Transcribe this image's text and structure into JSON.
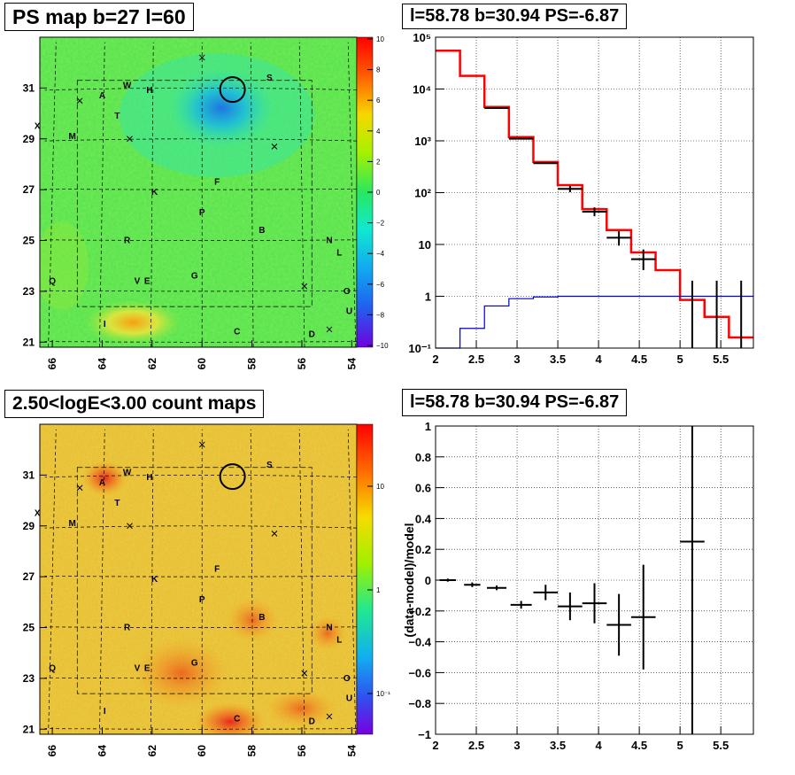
{
  "panels": {
    "ps_map": {
      "title": "PS map b=27 l=60"
    },
    "spectrum": {
      "title": "l=58.78 b=30.94 PS=-6.87"
    },
    "count_map": {
      "title": "2.50<logE<3.00 count maps"
    },
    "residual": {
      "title": "l=58.78 b=30.94 PS=-6.87"
    }
  },
  "maps": {
    "x_ticks": [
      "66",
      "64",
      "62",
      "60",
      "58",
      "56",
      "54"
    ],
    "y_ticks": [
      "31",
      "29",
      "27",
      "25",
      "23",
      "21"
    ],
    "source_labels": [
      {
        "t": "S",
        "l": 57.3,
        "b": 31.3
      },
      {
        "t": "W",
        "l": 63.0,
        "b": 31.0
      },
      {
        "t": "H",
        "l": 62.1,
        "b": 30.8
      },
      {
        "t": "A",
        "l": 64.0,
        "b": 30.6
      },
      {
        "t": "T",
        "l": 63.4,
        "b": 29.8
      },
      {
        "t": "X",
        "l": 66.6,
        "b": 29.4
      },
      {
        "t": "M",
        "l": 65.2,
        "b": 29.0
      },
      {
        "t": "F",
        "l": 59.4,
        "b": 27.2
      },
      {
        "t": "K",
        "l": 61.9,
        "b": 26.8
      },
      {
        "t": "P",
        "l": 60.0,
        "b": 26.0
      },
      {
        "t": "B",
        "l": 57.6,
        "b": 25.3
      },
      {
        "t": "R",
        "l": 63.0,
        "b": 24.9
      },
      {
        "t": "N",
        "l": 54.9,
        "b": 24.9
      },
      {
        "t": "L",
        "l": 54.5,
        "b": 24.4
      },
      {
        "t": "Q",
        "l": 66.0,
        "b": 23.3
      },
      {
        "t": "G",
        "l": 60.3,
        "b": 23.5
      },
      {
        "t": "V",
        "l": 62.6,
        "b": 23.3
      },
      {
        "t": "E",
        "l": 62.2,
        "b": 23.3
      },
      {
        "t": "O",
        "l": 54.2,
        "b": 22.9
      },
      {
        "t": "U",
        "l": 54.1,
        "b": 22.1
      },
      {
        "t": "I",
        "l": 63.9,
        "b": 21.6
      },
      {
        "t": "C",
        "l": 58.6,
        "b": 21.3
      },
      {
        "t": "D",
        "l": 55.6,
        "b": 21.2
      }
    ],
    "cross_markers": [
      {
        "l": 60.0,
        "b": 32.2
      },
      {
        "l": 64.9,
        "b": 30.5
      },
      {
        "l": 62.9,
        "b": 29.0
      },
      {
        "l": 57.1,
        "b": 28.7
      },
      {
        "l": 55.9,
        "b": 23.2
      },
      {
        "l": 54.9,
        "b": 21.5
      }
    ],
    "circle": {
      "l": 58.78,
      "b": 30.94
    }
  },
  "colorbars": {
    "ps": {
      "ticks": [
        "10",
        "8",
        "6",
        "4",
        "2",
        "0",
        "−2",
        "−4",
        "−6",
        "−8",
        "−10"
      ]
    },
    "count": {
      "ticks": [
        "10",
        "1",
        "10⁻¹"
      ]
    }
  },
  "chart_data": [
    {
      "type": "heatmap",
      "title": "PS map b=27 l=60",
      "xlabel": "",
      "ylabel": "",
      "xlim": [
        66.5,
        53.8
      ],
      "ylim": [
        20.8,
        33.0
      ],
      "colorbar_range": [
        -10,
        10
      ],
      "marked_source": {
        "l": 58.78,
        "b": 30.94,
        "PS": -6.87
      }
    },
    {
      "type": "line",
      "title": "l=58.78 b=30.94 PS=-6.87",
      "xlabel": "",
      "ylabel": "",
      "x_ticks": [
        "2",
        "2.5",
        "3",
        "3.5",
        "4",
        "4.5",
        "5",
        "5.5"
      ],
      "y_ticks": [
        "10⁻¹",
        "1",
        "10",
        "10²",
        "10³",
        "10⁴",
        "10⁵"
      ],
      "xlim": [
        2,
        5.9
      ],
      "ylim": [
        0.1,
        100000
      ],
      "log_y": true,
      "grid": true,
      "bin_edges": [
        2.0,
        2.3,
        2.6,
        2.9,
        3.2,
        3.5,
        3.8,
        4.1,
        4.4,
        4.7,
        5.0,
        5.3,
        5.6,
        5.9
      ],
      "series": [
        {
          "color": "#ff0000",
          "values": [
            55000,
            18000,
            4500,
            1180,
            390,
            140,
            48,
            19,
            7,
            3.2,
            0.85,
            0.4,
            0.16
          ]
        },
        {
          "color": "#0000cc",
          "values": [
            0.1,
            0.24,
            0.65,
            0.9,
            0.97,
            1,
            1,
            1,
            1,
            1,
            1,
            1,
            1
          ]
        },
        {
          "color": "#000000",
          "points": [
            {
              "x": 2.75,
              "y": 4300,
              "xerr": 0.15
            },
            {
              "x": 3.05,
              "y": 1100,
              "xerr": 0.15
            },
            {
              "x": 3.35,
              "y": 370,
              "xerr": 0.15
            },
            {
              "x": 3.65,
              "y": 118,
              "xerr": 0.15,
              "ylo": 102,
              "yhi": 135
            },
            {
              "x": 3.95,
              "y": 43,
              "xerr": 0.15,
              "ylo": 35,
              "yhi": 52
            },
            {
              "x": 4.25,
              "y": 13.5,
              "xerr": 0.15,
              "ylo": 9.5,
              "yhi": 18
            },
            {
              "x": 4.55,
              "y": 5.2,
              "xerr": 0.15,
              "ylo": 3.2,
              "yhi": 8
            },
            {
              "x": 5.15,
              "y": 0.1,
              "xerr": 0,
              "ylo": 0.1,
              "yhi": 2
            },
            {
              "x": 5.45,
              "y": 0.1,
              "xerr": 0,
              "ylo": 0.1,
              "yhi": 2
            },
            {
              "x": 5.75,
              "y": 0.1,
              "xerr": 0,
              "ylo": 0.1,
              "yhi": 2
            }
          ]
        }
      ]
    },
    {
      "type": "heatmap",
      "title": "2.50<logE<3.00 count maps",
      "xlabel": "",
      "ylabel": "",
      "xlim": [
        66.5,
        53.8
      ],
      "ylim": [
        20.8,
        33.0
      ],
      "colorbar": "log"
    },
    {
      "type": "scatter",
      "title": "l=58.78 b=30.94 PS=-6.87",
      "xlabel": "",
      "ylabel": "(data-model)/model",
      "x_ticks": [
        "2",
        "2.5",
        "3",
        "3.5",
        "4",
        "4.5",
        "5",
        "5.5"
      ],
      "y_ticks": [
        "1",
        "0.8",
        "0.6",
        "0.4",
        "0.2",
        "0",
        "−0.2",
        "−0.4",
        "−0.6",
        "−0.8",
        "−1"
      ],
      "xlim": [
        2,
        5.9
      ],
      "ylim": [
        -1,
        1
      ],
      "grid": true,
      "points": [
        {
          "x": 2.15,
          "y": 0.0,
          "xerr": 0.1,
          "yerr": 0.01
        },
        {
          "x": 2.45,
          "y": -0.03,
          "xerr": 0.1,
          "yerr": 0.015
        },
        {
          "x": 2.75,
          "y": -0.05,
          "xerr": 0.12,
          "yerr": 0.015
        },
        {
          "x": 3.05,
          "y": -0.16,
          "xerr": 0.13,
          "yerr": 0.025
        },
        {
          "x": 3.35,
          "y": -0.08,
          "xerr": 0.15,
          "yerr": 0.05
        },
        {
          "x": 3.65,
          "y": -0.17,
          "xerr": 0.15,
          "yerr": 0.09
        },
        {
          "x": 3.95,
          "y": -0.15,
          "xerr": 0.15,
          "yerr": 0.13
        },
        {
          "x": 4.25,
          "y": -0.29,
          "xerr": 0.15,
          "yerr": 0.2
        },
        {
          "x": 4.55,
          "y": -0.24,
          "xerr": 0.15,
          "yerr": 0.34
        },
        {
          "x": 5.15,
          "y": 0.25,
          "xerr": 0.15,
          "ylo": -1,
          "yhi": 1
        }
      ]
    }
  ]
}
